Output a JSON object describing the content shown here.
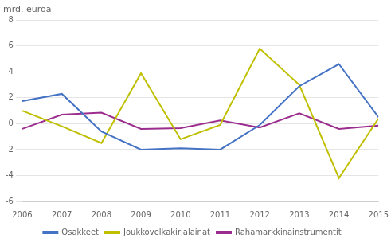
{
  "chart_data": {
    "type": "line",
    "ylabel": "mrd. euroa",
    "x": [
      2006,
      2007,
      2008,
      2009,
      2010,
      2011,
      2012,
      2013,
      2014,
      2015
    ],
    "xlim": [
      2006,
      2015
    ],
    "xticks": [
      2006,
      2007,
      2008,
      2009,
      2010,
      2011,
      2012,
      2013,
      2014,
      2015
    ],
    "ylim": [
      -6,
      8
    ],
    "yticks": [
      -6,
      -4,
      -2,
      0,
      2,
      4,
      6,
      8
    ],
    "grid": true,
    "legend": "bottom",
    "marker": "none",
    "series": [
      {
        "name": "Osakkeet",
        "color": "#4472C4",
        "values": [
          1.75,
          2.3,
          -0.6,
          -2.0,
          -1.9,
          -2.0,
          -0.1,
          2.9,
          4.6,
          0.5
        ]
      },
      {
        "name": "Joukkovelkakirjalainat",
        "color": "#BFBF00",
        "values": [
          1.0,
          -0.2,
          -1.5,
          3.9,
          -1.2,
          -0.1,
          5.8,
          3.0,
          -4.2,
          0.4
        ]
      },
      {
        "name": "Rahamarkkinainstrumentit",
        "color": "#9B2D8E",
        "values": [
          -0.4,
          0.7,
          0.85,
          -0.4,
          -0.35,
          0.25,
          -0.3,
          0.8,
          -0.4,
          -0.15
        ]
      }
    ]
  }
}
